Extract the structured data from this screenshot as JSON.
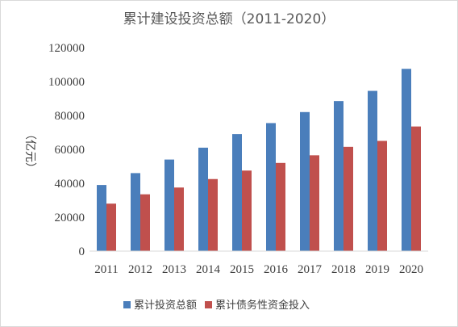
{
  "chart_data": {
    "type": "bar",
    "title": "累计建设投资总额（2011-2020）",
    "ylabel": "（亿元）",
    "xlabel": "",
    "categories": [
      "2011",
      "2012",
      "2013",
      "2014",
      "2015",
      "2016",
      "2017",
      "2018",
      "2019",
      "2020"
    ],
    "series": [
      {
        "name": "累计投资总额",
        "color": "#4a7ebb",
        "values": [
          39000,
          46000,
          54000,
          61000,
          69000,
          75500,
          82000,
          88500,
          94500,
          107500
        ]
      },
      {
        "name": "累计债务性资金投入",
        "color": "#c0504d",
        "values": [
          28000,
          33500,
          37500,
          42500,
          47500,
          52000,
          56500,
          61500,
          65000,
          73500
        ]
      }
    ],
    "ylim": [
      0,
      120000
    ],
    "yticks": [
      0,
      20000,
      40000,
      60000,
      80000,
      100000,
      120000
    ],
    "grid": false,
    "legend_position": "bottom"
  }
}
